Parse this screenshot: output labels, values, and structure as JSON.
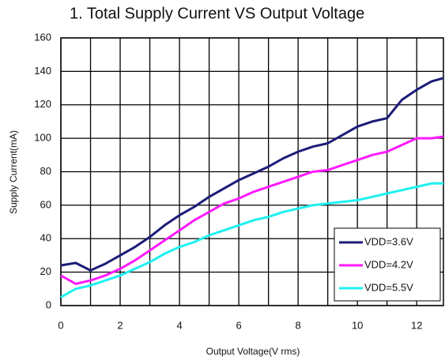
{
  "chart_data": {
    "type": "line",
    "title": "1. Total Supply Current VS Output Voltage",
    "x_label": "Output Voltage(V rms)",
    "y_label": "Supply Current(mA)",
    "x": [
      0,
      0.5,
      1,
      1.5,
      2,
      2.5,
      3,
      3.5,
      4,
      4.5,
      5,
      5.5,
      6,
      6.5,
      7,
      7.5,
      8,
      8.5,
      9,
      9.5,
      10,
      10.5,
      11,
      11.5,
      12,
      12.5,
      12.9
    ],
    "series": [
      {
        "name": "VDD=3.6V",
        "color": "#1c1c78",
        "values": [
          24,
          25.5,
          21,
          25,
          30,
          35,
          41,
          48,
          54,
          59,
          65,
          70,
          75,
          79,
          83,
          88,
          92,
          95,
          97,
          102,
          107,
          110,
          112,
          123,
          129,
          134,
          136
        ]
      },
      {
        "name": "VDD=4.2V",
        "color": "#ff1aff",
        "values": [
          18,
          13,
          15,
          18,
          22,
          27,
          33,
          39,
          45,
          51,
          56,
          61,
          64,
          68,
          71,
          74,
          77,
          80,
          81,
          84,
          87,
          90,
          92,
          96,
          100,
          100,
          101
        ]
      },
      {
        "name": "VDD=5.5V",
        "color": "#1ff0f0",
        "values": [
          5,
          10,
          12,
          15,
          18,
          22,
          26,
          31,
          35,
          38,
          42,
          45,
          48,
          51,
          53,
          56,
          58,
          60,
          61,
          62,
          63,
          65,
          67,
          69,
          71,
          73,
          73
        ]
      }
    ],
    "xlim": [
      0,
      12.9
    ],
    "xticks": [
      0,
      2,
      4,
      6,
      8,
      10,
      12
    ],
    "xminorticks": [
      1,
      3,
      5,
      7,
      9,
      11
    ],
    "ylim": [
      0,
      160
    ],
    "yticks": [
      0,
      20,
      40,
      60,
      80,
      100,
      120,
      140,
      160
    ],
    "grid": true,
    "legend": "lower right"
  }
}
